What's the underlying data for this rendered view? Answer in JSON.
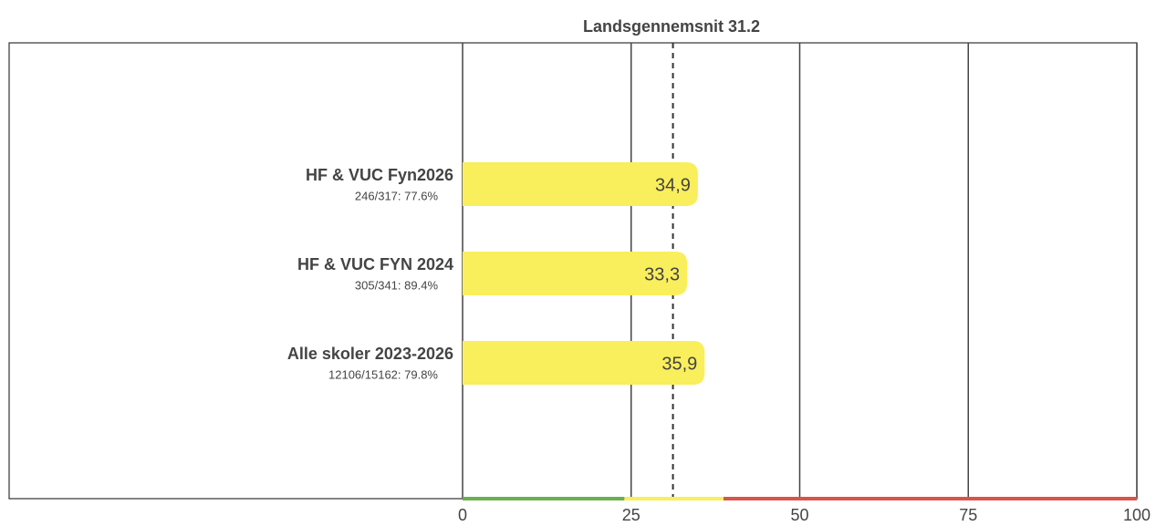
{
  "chart_data": {
    "type": "bar",
    "orientation": "horizontal",
    "categories": [
      "HF & VUC Fyn2026",
      "HF & VUC FYN 2024",
      "Alle skoler 2023-2026"
    ],
    "subtitles": [
      "246/317: 77.6%",
      "305/341: 89.4%",
      "12106/15162: 79.8%"
    ],
    "values": [
      34.9,
      33.3,
      35.9
    ],
    "value_labels": [
      "34,9",
      "33,3",
      "35,9"
    ],
    "color": "#f9ee5c",
    "xlim": [
      0,
      100
    ],
    "xticks": [
      0,
      25,
      50,
      75,
      100
    ],
    "grid": true,
    "reference_line": {
      "value": 31.2,
      "label": "Landsgennemsnit 31.2"
    },
    "bands": [
      {
        "from": 0,
        "to": 24,
        "color": "#6ab04c"
      },
      {
        "from": 24,
        "to": 38.7,
        "color": "#f9ee5c"
      },
      {
        "from": 38.7,
        "to": 100,
        "color": "#d9544a"
      }
    ]
  }
}
